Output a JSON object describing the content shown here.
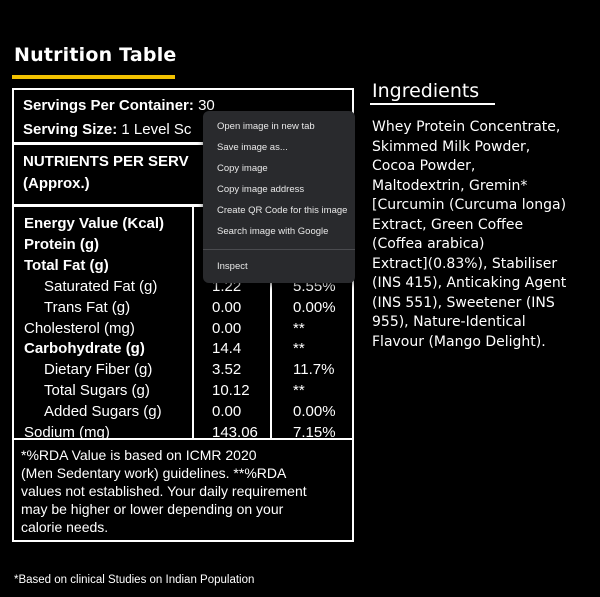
{
  "title": "Nutrition Table",
  "table": {
    "servings_label": "Servings Per Container:",
    "servings_value": "30",
    "serving_size_label": "Serving Size:",
    "serving_size_value": "1 Level Sc",
    "nutrients_header_line1": "NUTRIENTS PER SERV",
    "nutrients_header_line2": "(Approx.)",
    "rows": [
      {
        "name": "Energy Value (Kcal)",
        "value": "",
        "rda": ""
      },
      {
        "name": "Protein (g)",
        "value": "",
        "rda": ""
      },
      {
        "name": "Total Fat (g)",
        "value": "",
        "rda": ""
      },
      {
        "name": "Saturated Fat (g)",
        "value": "1.22",
        "rda": "5.55%"
      },
      {
        "name": "Trans Fat (g)",
        "value": "0.00",
        "rda": "0.00%"
      },
      {
        "name": "Cholesterol (mg)",
        "value": "0.00",
        "rda": "**"
      },
      {
        "name": "Carbohydrate (g)",
        "value": "14.4",
        "rda": "**"
      },
      {
        "name": "Dietary Fiber (g)",
        "value": "3.52",
        "rda": "11.7%"
      },
      {
        "name": "Total Sugars (g)",
        "value": "10.12",
        "rda": "**"
      },
      {
        "name": "Added Sugars (g)",
        "value": "0.00",
        "rda": "0.00%"
      },
      {
        "name": "Sodium (mg)",
        "value": "143.06",
        "rda": "7.15%"
      }
    ],
    "note_lines": [
      "*%RDA Value is based on ICMR 2020",
      "(Men Sedentary work) guidelines. **%RDA",
      "values not established. Your daily requirement",
      "may be higher or lower depending on your",
      "calorie needs."
    ]
  },
  "ingredients": {
    "title": "Ingredients",
    "lines": [
      "Whey Protein Concentrate,",
      "Skimmed Milk Powder,",
      "Cocoa Powder,",
      "Maltodextrin, Gremin*",
      "[Curcumin (Curcuma longa)",
      "Extract, Green Coffee",
      "(Coffea arabica)",
      "Extract](0.83%), Stabiliser",
      "(INS 415), Anticaking Agent",
      "(INS 551), Sweetener (INS",
      "955), Nature-Identical",
      "Flavour (Mango Delight)."
    ]
  },
  "footnote": "*Based on clinical Studies on Indian Population",
  "context_menu": {
    "items": [
      "Open image in new tab",
      "Save image as...",
      "Copy image",
      "Copy image address",
      "Create QR Code for this image",
      "Search image with Google",
      "Inspect"
    ]
  },
  "colors": {
    "accent": "#f2c200",
    "menu_bg": "#292a2d",
    "background": "#000000"
  }
}
